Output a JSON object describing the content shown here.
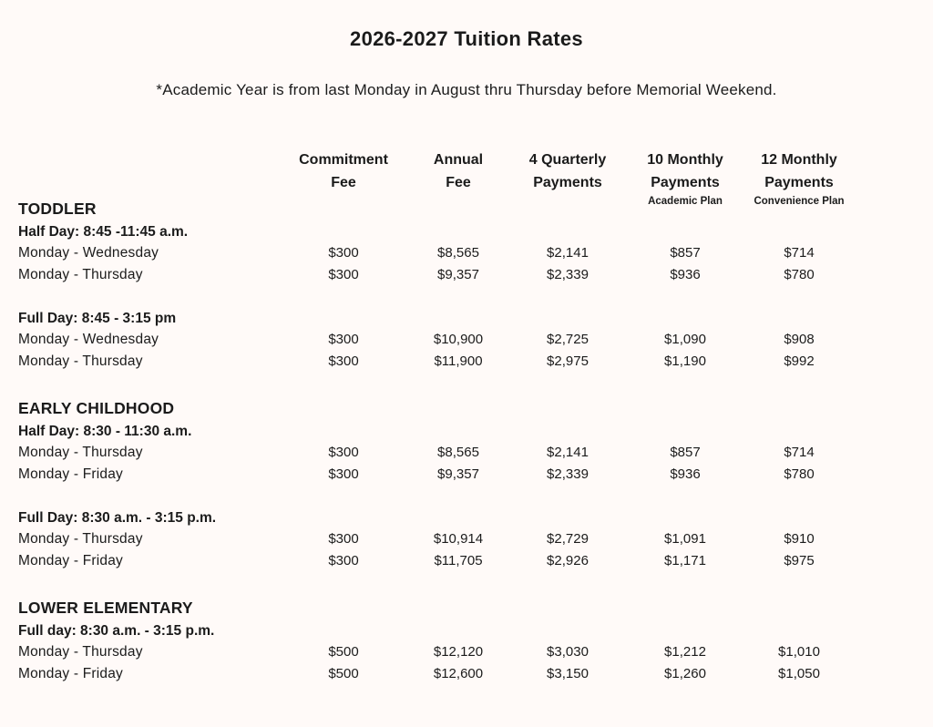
{
  "page": {
    "title": "2026-2027 Tuition Rates",
    "subtitle": "*Academic Year is from last Monday in August thru Thursday before Memorial Weekend."
  },
  "colors": {
    "background": "#FFFAF8",
    "text": "#1B1B1B"
  },
  "table": {
    "columns": [
      {
        "line1": "Commitment",
        "line2": "Fee",
        "sub": ""
      },
      {
        "line1": "Annual",
        "line2": "Fee",
        "sub": ""
      },
      {
        "line1": "4 Quarterly",
        "line2": "Payments",
        "sub": ""
      },
      {
        "line1": "10 Monthly",
        "line2": "Payments",
        "sub": "Academic Plan"
      },
      {
        "line1": "12 Monthly",
        "line2": "Payments",
        "sub": "Convenience Plan"
      }
    ],
    "sections": [
      {
        "name": "TODDLER",
        "groups": [
          {
            "schedule": "Half Day: 8:45 -11:45 a.m.",
            "rows": [
              {
                "label": "Monday - Wednesday",
                "values": [
                  "$300",
                  "$8,565",
                  "$2,141",
                  "$857",
                  "$714"
                ]
              },
              {
                "label": "Monday - Thursday",
                "values": [
                  "$300",
                  "$9,357",
                  "$2,339",
                  "$936",
                  "$780"
                ]
              }
            ]
          },
          {
            "schedule": "Full Day: 8:45 - 3:15 pm",
            "rows": [
              {
                "label": "Monday - Wednesday",
                "values": [
                  "$300",
                  "$10,900",
                  "$2,725",
                  "$1,090",
                  "$908"
                ]
              },
              {
                "label": "Monday - Thursday",
                "values": [
                  "$300",
                  "$11,900",
                  "$2,975",
                  "$1,190",
                  "$992"
                ]
              }
            ]
          }
        ]
      },
      {
        "name": "EARLY CHILDHOOD",
        "groups": [
          {
            "schedule": "Half Day: 8:30 - 11:30 a.m.",
            "rows": [
              {
                "label": "Monday - Thursday",
                "values": [
                  "$300",
                  "$8,565",
                  "$2,141",
                  "$857",
                  "$714"
                ]
              },
              {
                "label": "Monday - Friday",
                "values": [
                  "$300",
                  "$9,357",
                  "$2,339",
                  "$936",
                  "$780"
                ]
              }
            ]
          },
          {
            "schedule": "Full Day: 8:30 a.m. - 3:15 p.m.",
            "rows": [
              {
                "label": "Monday - Thursday",
                "values": [
                  "$300",
                  "$10,914",
                  "$2,729",
                  "$1,091",
                  "$910"
                ]
              },
              {
                "label": "Monday - Friday",
                "values": [
                  "$300",
                  "$11,705",
                  "$2,926",
                  "$1,171",
                  "$975"
                ]
              }
            ]
          }
        ]
      },
      {
        "name": "LOWER ELEMENTARY",
        "groups": [
          {
            "schedule": "Full day: 8:30 a.m. - 3:15 p.m.",
            "rows": [
              {
                "label": "Monday - Thursday",
                "values": [
                  "$500",
                  "$12,120",
                  "$3,030",
                  "$1,212",
                  "$1,010"
                ]
              },
              {
                "label": "Monday - Friday",
                "values": [
                  "$500",
                  "$12,600",
                  "$3,150",
                  "$1,260",
                  "$1,050"
                ]
              }
            ]
          }
        ]
      }
    ]
  }
}
